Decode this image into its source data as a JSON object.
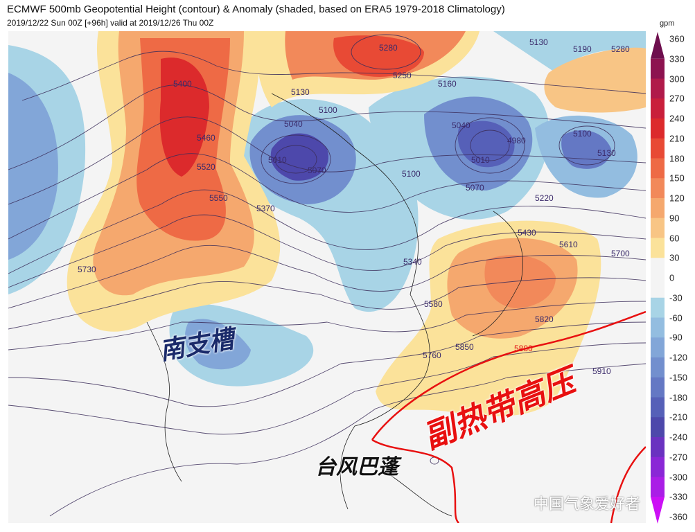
{
  "header": {
    "title": "ECMWF 500mb Geopotential Height (contour) & Anomaly (shaded, based on ERA5 1979-2018 Climatology)",
    "subtitle": "2019/12/22 Sun 00Z [+96h] valid at 2019/12/26 Thu 00Z"
  },
  "colorbar": {
    "unit": "gpm",
    "labels": [
      "360",
      "330",
      "300",
      "270",
      "240",
      "210",
      "180",
      "150",
      "120",
      "90",
      "60",
      "30",
      "0",
      "-30",
      "-60",
      "-90",
      "-120",
      "-150",
      "-180",
      "-210",
      "-240",
      "-270",
      "-300",
      "-330",
      "-360"
    ],
    "colors": [
      "#6e0f4e",
      "#8d1350",
      "#b01a4a",
      "#c91f3b",
      "#dc2a2c",
      "#e84a35",
      "#ee6a45",
      "#f2895a",
      "#f5a86e",
      "#f8c585",
      "#fbe29a",
      "#f4f4f4",
      "#f4f4f4",
      "#a8d4e6",
      "#93bde0",
      "#82a6d8",
      "#728fce",
      "#6478c4",
      "#5660b8",
      "#4d48ab",
      "#6a32c0",
      "#8a27d6",
      "#aa1ee6",
      "#cc10f5"
    ]
  },
  "contour_labels": [
    "5280",
    "5250",
    "5130",
    "5190",
    "5280",
    "5160",
    "5130",
    "5100",
    "5040",
    "5010",
    "5070",
    "5040",
    "4980",
    "5010",
    "5100",
    "5070",
    "5100",
    "5130",
    "5400",
    "5460",
    "5520",
    "5550",
    "5370",
    "5220",
    "5430",
    "5610",
    "5700",
    "5340",
    "5730",
    "5580",
    "5820",
    "5760",
    "5850",
    "5880",
    "5910"
  ],
  "annotations": {
    "south_branch_trough": "南支槽",
    "subtropical_high": "副热带高压",
    "typhoon": "台风巴蓬"
  },
  "watermark": "中国气象爱好者"
}
